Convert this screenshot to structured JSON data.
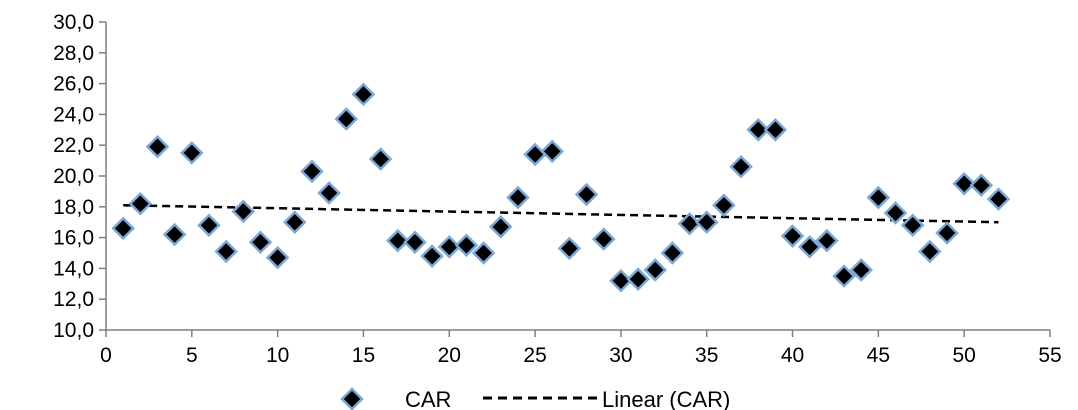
{
  "chart_data": {
    "type": "scatter",
    "title": "",
    "xlabel": "",
    "ylabel": "",
    "xlim": [
      0,
      55
    ],
    "ylim": [
      10,
      30
    ],
    "x_ticks": [
      "0",
      "5",
      "10",
      "15",
      "20",
      "25",
      "30",
      "35",
      "40",
      "45",
      "50",
      "55"
    ],
    "y_ticks": [
      "10,0",
      "12,0",
      "14,0",
      "16,0",
      "18,0",
      "20,0",
      "22,0",
      "24,0",
      "26,0",
      "28,0",
      "30,0"
    ],
    "grid": false,
    "legend_position": "bottom",
    "colors": {
      "marker": "#000000",
      "marker_edge": "#7aa7d6",
      "trendline": "#000000"
    },
    "series": [
      {
        "name": "CAR",
        "x": [
          1,
          2,
          3,
          4,
          5,
          6,
          7,
          8,
          9,
          10,
          11,
          12,
          13,
          14,
          15,
          16,
          17,
          18,
          19,
          20,
          21,
          22,
          23,
          24,
          25,
          26,
          27,
          28,
          29,
          30,
          31,
          32,
          33,
          34,
          35,
          36,
          37,
          38,
          39,
          40,
          41,
          42,
          43,
          44,
          45,
          46,
          47,
          48,
          49,
          50,
          51,
          52
        ],
        "y": [
          16.6,
          18.2,
          21.9,
          16.2,
          21.5,
          16.8,
          15.1,
          17.7,
          15.7,
          14.7,
          17.0,
          20.3,
          18.9,
          23.7,
          25.3,
          21.1,
          15.8,
          15.7,
          14.8,
          15.4,
          15.5,
          15.0,
          16.7,
          18.6,
          21.4,
          21.6,
          15.3,
          18.8,
          15.9,
          13.2,
          13.3,
          13.9,
          15.0,
          16.9,
          17.0,
          18.1,
          20.6,
          23.0,
          23.0,
          16.1,
          15.4,
          15.8,
          13.5,
          13.9,
          18.6,
          17.6,
          16.8,
          15.1,
          16.3,
          19.5,
          19.4,
          18.5
        ]
      },
      {
        "name": "Linear (CAR)",
        "type": "linear_trend",
        "x": [
          1,
          52
        ],
        "y": [
          18.1,
          17.0
        ]
      }
    ]
  }
}
